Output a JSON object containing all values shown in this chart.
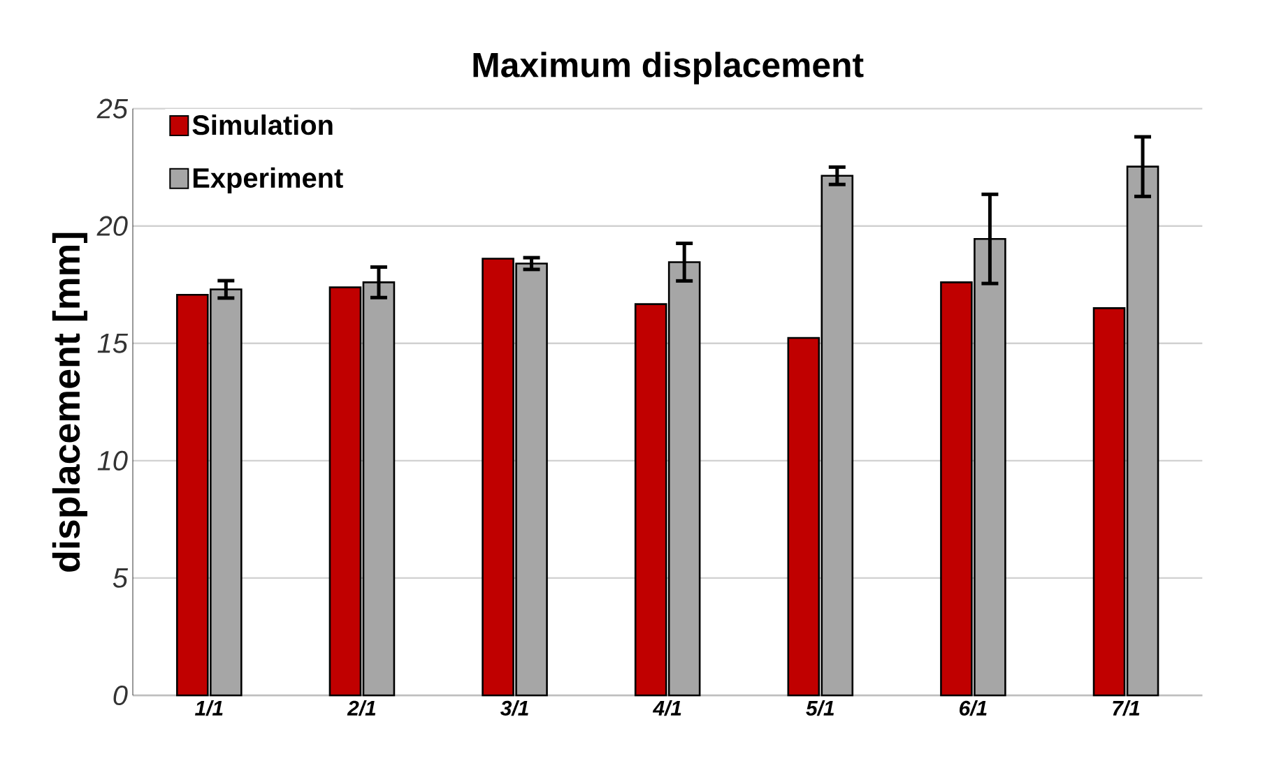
{
  "chart_data": {
    "type": "bar",
    "title": "Maximum displacement",
    "ylabel": "displacement [mm]",
    "categories": [
      "1/1",
      "2/1",
      "3/1",
      "4/1",
      "5/1",
      "6/1",
      "7/1"
    ],
    "series": [
      {
        "name": "Simulation",
        "color": "#c00000",
        "values": [
          17.07,
          17.39,
          18.61,
          16.67,
          15.23,
          17.6,
          16.5
        ]
      },
      {
        "name": "Experiment",
        "color": "#a6a6a6",
        "values": [
          17.3,
          17.6,
          18.4,
          18.46,
          22.14,
          19.45,
          22.53
        ],
        "errors": [
          0.37,
          0.65,
          0.25,
          0.8,
          0.37,
          1.9,
          1.27
        ]
      }
    ],
    "ylim": [
      0,
      25
    ],
    "yticks": [
      0,
      5,
      10,
      15,
      20,
      25
    ],
    "grid": "y",
    "legend": "top left"
  }
}
